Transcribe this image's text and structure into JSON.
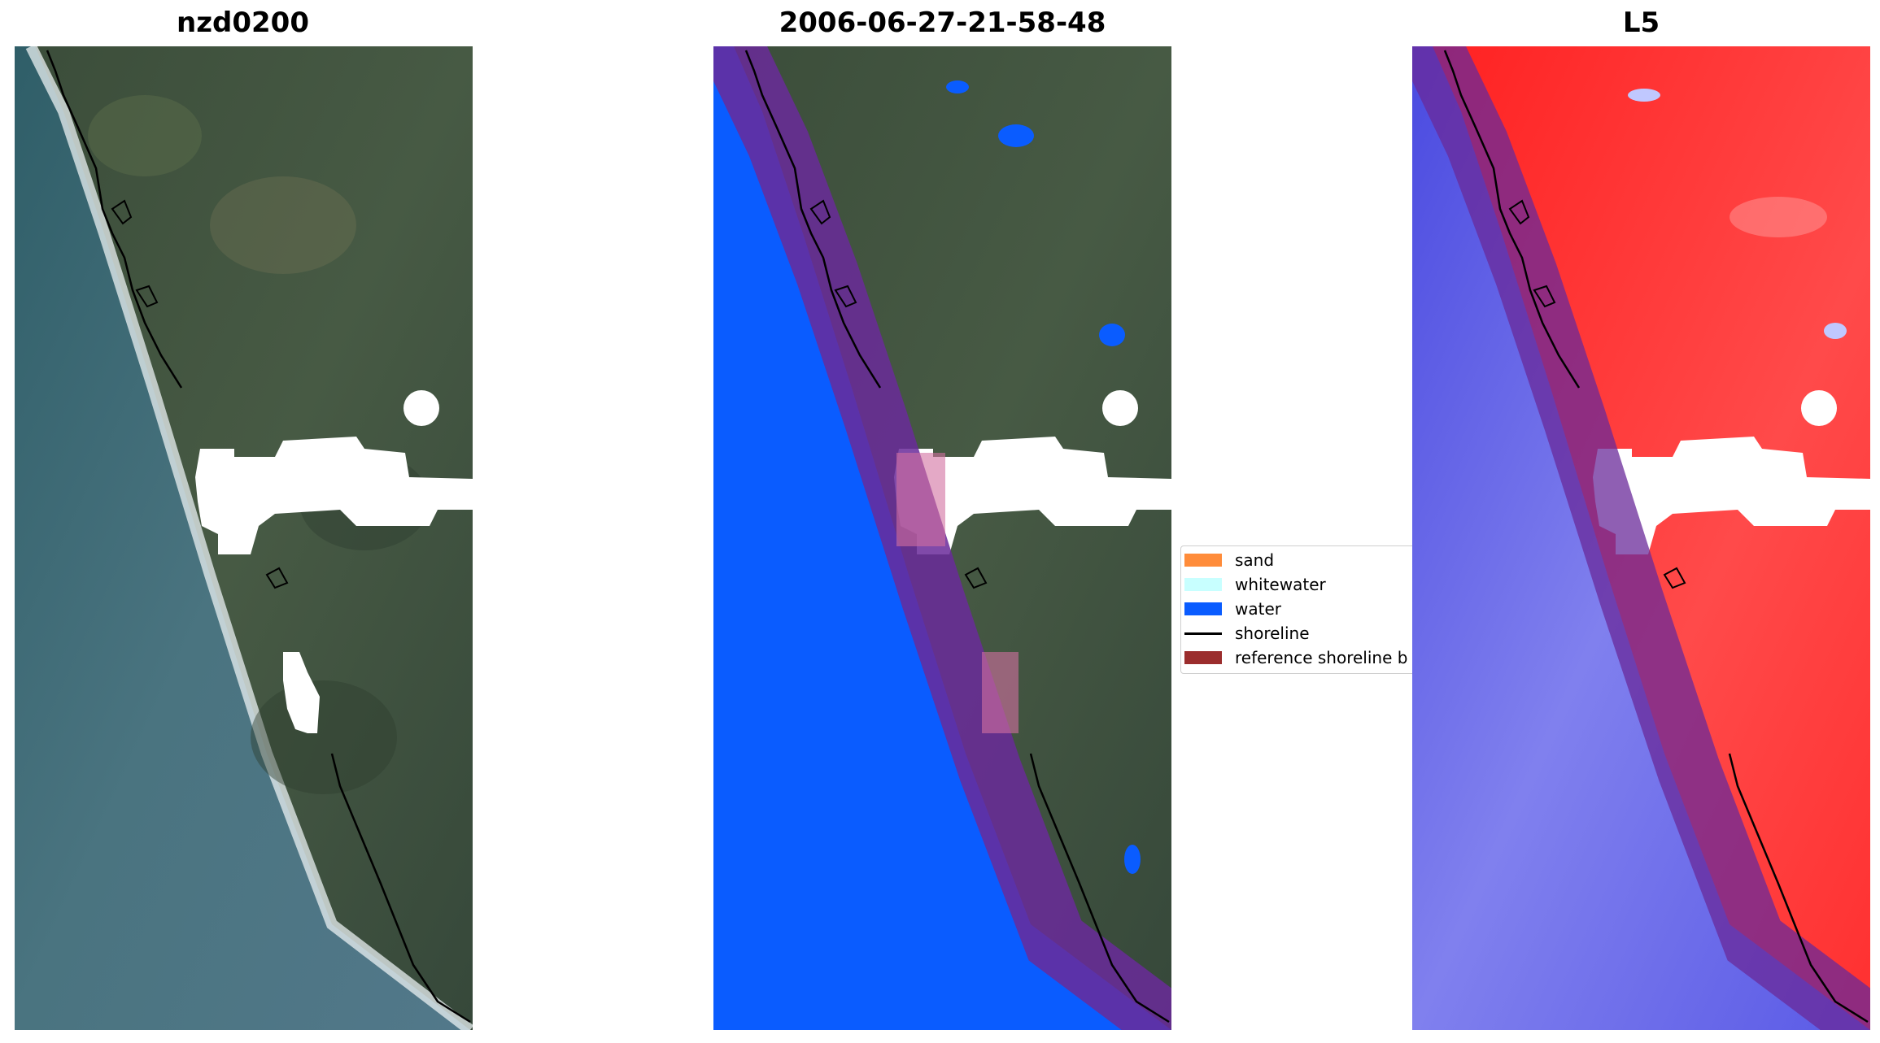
{
  "panels": [
    {
      "title": "nzd0200",
      "kind": "rgb"
    },
    {
      "title": "2006-06-27-21-58-48",
      "kind": "classified"
    },
    {
      "title": "L5",
      "kind": "index"
    }
  ],
  "legend": {
    "items": [
      {
        "label": "sand",
        "color": "#ff8c3a",
        "type": "patch"
      },
      {
        "label": "whitewater",
        "color": "#c8ffff",
        "type": "patch"
      },
      {
        "label": "water",
        "color": "#0a5cff",
        "type": "patch"
      },
      {
        "label": "shoreline",
        "color": "#000000",
        "type": "line"
      },
      {
        "label": "reference shoreline b",
        "color": "#9b2d2d",
        "type": "patch"
      }
    ]
  },
  "colors": {
    "sea_rgb": "#3f6b78",
    "land_rgb": "#3f5240",
    "cloud": "#ffffff",
    "water_class": "#0a5cff",
    "buffer": "#6a2a9a",
    "index_water": "#3a3ae8",
    "index_land": "#ff2a2a"
  }
}
